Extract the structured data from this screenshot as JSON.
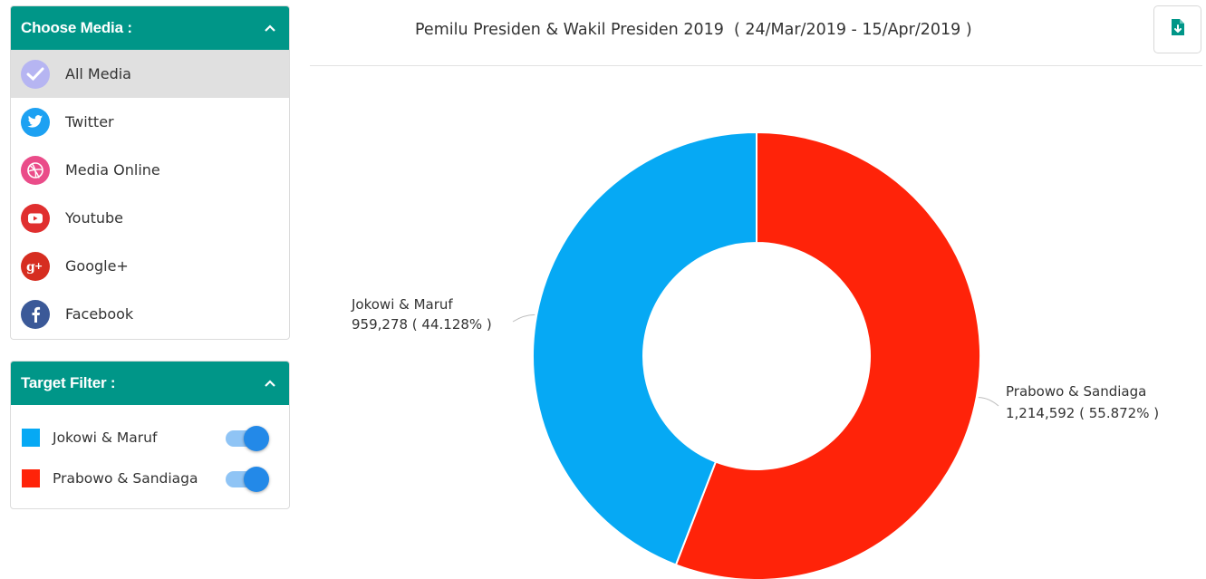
{
  "media_panel": {
    "title": "Choose Media :",
    "items": [
      {
        "label": "All Media",
        "icon": "check-icon",
        "color": "#b6b5f2",
        "active": true
      },
      {
        "label": "Twitter",
        "icon": "twitter-icon",
        "color": "#1da1f2"
      },
      {
        "label": "Media Online",
        "icon": "dribbble-icon",
        "color": "#ea4c89"
      },
      {
        "label": "Youtube",
        "icon": "youtube-icon",
        "color": "#e02f2f"
      },
      {
        "label": "Google+",
        "icon": "google-plus-icon",
        "color": "#d62d20"
      },
      {
        "label": "Facebook",
        "icon": "facebook-icon",
        "color": "#3b5998"
      }
    ]
  },
  "filter_panel": {
    "title": "Target Filter :",
    "items": [
      {
        "label": "Jokowi & Maruf",
        "color": "#06a9f4",
        "enabled": true
      },
      {
        "label": "Prabowo & Sandiaga",
        "color": "#ff2309",
        "enabled": true
      }
    ]
  },
  "header": {
    "title": "Pemilu Presiden & Wakil Presiden 2019  ( 24/Mar/2019 - 15/Apr/2019 )",
    "download_icon": "download-file-icon",
    "accent": "#009688"
  },
  "chart_data": {
    "type": "pie",
    "style": "donut",
    "series": [
      {
        "name": "Jokowi & Maruf",
        "value": 959278,
        "value_label": "959,278 ( 44.128% )",
        "percent": 44.128,
        "color": "#06a9f4"
      },
      {
        "name": "Prabowo & Sandiaga",
        "value": 1214592,
        "value_label": "1,214,592 ( 55.872% )",
        "percent": 55.872,
        "color": "#ff2309"
      }
    ]
  }
}
